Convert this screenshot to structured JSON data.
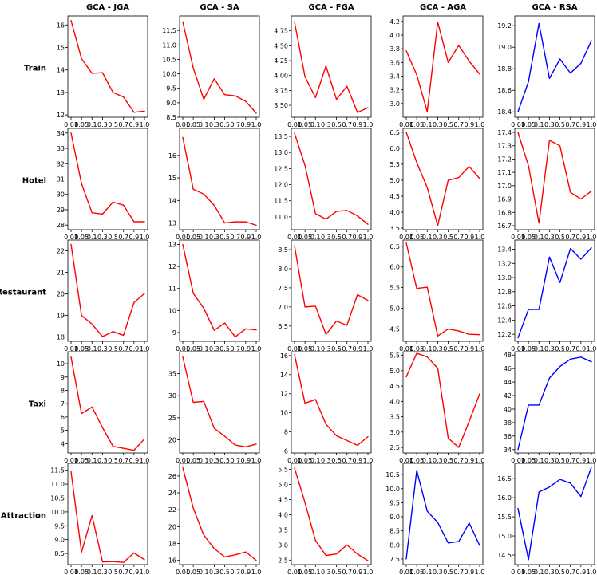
{
  "chart_data": {
    "type": "line",
    "x_tick_labels": [
      "0.01",
      "0.05",
      "0.1",
      "0.3",
      "0.5",
      "0.7",
      "0.9",
      "1.0"
    ],
    "columns": [
      "GCA - JGA",
      "GCA - SA",
      "GCA - FGA",
      "GCA - AGA",
      "GCA - RSA"
    ],
    "rows": [
      "Train",
      "Hotel",
      "Restaurant",
      "Taxi",
      "Attraction"
    ],
    "colors": {
      "red": "#ff0000",
      "blue": "#0000ff"
    },
    "panels": [
      [
        {
          "color": "red",
          "ylim": [
            11.9,
            16.4
          ],
          "yticks": [
            12,
            13,
            14,
            15,
            16
          ],
          "ytick_labels": [
            "12",
            "13",
            "14",
            "15",
            "16"
          ],
          "values": [
            16.2,
            14.5,
            13.85,
            13.88,
            13.0,
            12.8,
            12.12,
            12.17
          ]
        },
        {
          "color": "red",
          "ylim": [
            8.5,
            12.0
          ],
          "yticks": [
            8.5,
            9.0,
            9.5,
            10.0,
            10.5,
            11.0,
            11.5
          ],
          "ytick_labels": [
            "8.5",
            "9.0",
            "9.5",
            "10.0",
            "10.5",
            "11.0",
            "11.5"
          ],
          "values": [
            11.8,
            10.2,
            9.12,
            9.83,
            9.28,
            9.24,
            9.05,
            8.64
          ]
        },
        {
          "color": "red",
          "ylim": [
            3.3,
            5.0
          ],
          "yticks": [
            3.5,
            3.75,
            4.0,
            4.25,
            4.5,
            4.75
          ],
          "ytick_labels": [
            "3.50",
            "3.75",
            "4.00",
            "4.25",
            "4.50",
            "4.75"
          ],
          "values": [
            4.9,
            3.98,
            3.63,
            4.16,
            3.6,
            3.82,
            3.38,
            3.46
          ]
        },
        {
          "color": "red",
          "ylim": [
            2.8,
            4.28
          ],
          "yticks": [
            3.0,
            3.2,
            3.4,
            3.6,
            3.8,
            4.0,
            4.2
          ],
          "ytick_labels": [
            "3.0",
            "3.2",
            "3.4",
            "3.6",
            "3.8",
            "4.0",
            "4.2"
          ],
          "values": [
            3.77,
            3.42,
            2.88,
            4.19,
            3.6,
            3.85,
            3.62,
            3.43
          ]
        },
        {
          "color": "blue",
          "ylim": [
            18.35,
            19.29
          ],
          "yticks": [
            18.4,
            18.6,
            18.8,
            19.0,
            19.2
          ],
          "ytick_labels": [
            "18.4",
            "18.6",
            "18.8",
            "19.0",
            "19.2"
          ],
          "values": [
            18.4,
            18.68,
            19.22,
            18.71,
            18.89,
            18.76,
            18.85,
            19.06
          ]
        }
      ],
      [
        {
          "color": "red",
          "ylim": [
            27.7,
            34.3
          ],
          "yticks": [
            28,
            29,
            30,
            31,
            32,
            33,
            34
          ],
          "ytick_labels": [
            "28",
            "29",
            "30",
            "31",
            "32",
            "33",
            "34"
          ],
          "values": [
            34.0,
            30.7,
            28.8,
            28.72,
            29.5,
            29.3,
            28.22,
            28.22
          ]
        },
        {
          "color": "red",
          "ylim": [
            12.7,
            17.2
          ],
          "yticks": [
            13,
            14,
            15,
            16
          ],
          "ytick_labels": [
            "13",
            "14",
            "15",
            "16"
          ],
          "values": [
            16.8,
            14.5,
            14.28,
            13.78,
            13.0,
            13.05,
            13.05,
            12.9
          ]
        },
        {
          "color": "red",
          "ylim": [
            10.6,
            13.75
          ],
          "yticks": [
            11.0,
            11.5,
            12.0,
            12.5,
            13.0,
            13.5
          ],
          "ytick_labels": [
            "11.0",
            "11.5",
            "12.0",
            "12.5",
            "13.0",
            "13.5"
          ],
          "values": [
            13.6,
            12.6,
            11.1,
            10.93,
            11.17,
            11.2,
            11.03,
            10.77
          ]
        },
        {
          "color": "red",
          "ylim": [
            3.45,
            6.62
          ],
          "yticks": [
            3.5,
            4.0,
            4.5,
            5.0,
            5.5,
            6.0,
            6.5
          ],
          "ytick_labels": [
            "3.5",
            "4.0",
            "4.5",
            "5.0",
            "5.5",
            "6.0",
            "6.5"
          ],
          "values": [
            6.5,
            5.55,
            4.77,
            3.58,
            5.0,
            5.08,
            5.43,
            5.05
          ]
        },
        {
          "color": "red",
          "ylim": [
            16.67,
            17.43
          ],
          "yticks": [
            16.7,
            16.8,
            16.9,
            17.0,
            17.1,
            17.2,
            17.3,
            17.4
          ],
          "ytick_labels": [
            "16.7",
            "16.8",
            "16.9",
            "17.0",
            "17.1",
            "17.2",
            "17.3",
            "17.4"
          ],
          "values": [
            17.4,
            17.15,
            16.72,
            17.34,
            17.3,
            16.95,
            16.9,
            16.96
          ]
        }
      ],
      [
        {
          "color": "red",
          "ylim": [
            17.8,
            22.5
          ],
          "yticks": [
            18,
            19,
            20,
            21,
            22
          ],
          "ytick_labels": [
            "18",
            "19",
            "20",
            "21",
            "22"
          ],
          "values": [
            22.3,
            19.0,
            18.6,
            18.02,
            18.25,
            18.08,
            19.6,
            20.02
          ]
        },
        {
          "color": "red",
          "ylim": [
            8.6,
            13.2
          ],
          "yticks": [
            9,
            10,
            11,
            12,
            13
          ],
          "ytick_labels": [
            "9",
            "10",
            "11",
            "12",
            "13"
          ],
          "values": [
            13.0,
            10.78,
            10.1,
            9.1,
            9.43,
            8.8,
            9.17,
            9.12
          ]
        },
        {
          "color": "red",
          "ylim": [
            6.1,
            8.75
          ],
          "yticks": [
            6.5,
            7.0,
            7.5,
            8.0,
            8.5
          ],
          "ytick_labels": [
            "6.5",
            "7.0",
            "7.5",
            "8.0",
            "8.5"
          ],
          "values": [
            8.6,
            7.0,
            7.02,
            6.28,
            6.63,
            6.52,
            7.32,
            7.17
          ]
        },
        {
          "color": "red",
          "ylim": [
            4.2,
            6.65
          ],
          "yticks": [
            4.5,
            5.0,
            5.5,
            6.0,
            6.5
          ],
          "ytick_labels": [
            "4.5",
            "5.0",
            "5.5",
            "6.0",
            "6.5"
          ],
          "values": [
            6.58,
            5.48,
            5.51,
            4.33,
            4.5,
            4.45,
            4.37,
            4.36
          ]
        },
        {
          "color": "blue",
          "ylim": [
            12.1,
            13.53
          ],
          "yticks": [
            12.2,
            12.4,
            12.6,
            12.8,
            13.0,
            13.2,
            13.4
          ],
          "ytick_labels": [
            "12.2",
            "12.4",
            "12.6",
            "12.8",
            "13.0",
            "13.2",
            "13.4"
          ],
          "values": [
            12.15,
            12.55,
            12.55,
            13.29,
            12.93,
            13.41,
            13.26,
            13.42
          ]
        }
      ],
      [
        {
          "color": "red",
          "ylim": [
            3.3,
            10.9
          ],
          "yticks": [
            4,
            5,
            6,
            7,
            8,
            9,
            10
          ],
          "ytick_labels": [
            "4",
            "5",
            "6",
            "7",
            "8",
            "9",
            "10"
          ],
          "values": [
            10.5,
            6.25,
            6.75,
            5.2,
            3.8,
            3.65,
            3.5,
            4.35
          ]
        },
        {
          "color": "red",
          "ylim": [
            17.0,
            40.0
          ],
          "yticks": [
            20,
            25,
            30,
            35
          ],
          "ytick_labels": [
            "20",
            "25",
            "30",
            "35"
          ],
          "values": [
            38.8,
            28.5,
            28.7,
            22.6,
            20.8,
            18.8,
            18.4,
            19.0
          ]
        },
        {
          "color": "red",
          "ylim": [
            5.8,
            16.4
          ],
          "yticks": [
            6,
            8,
            10,
            12,
            14,
            16
          ],
          "ytick_labels": [
            "6",
            "8",
            "10",
            "12",
            "14",
            "16"
          ],
          "values": [
            16.1,
            11.0,
            11.4,
            8.8,
            7.6,
            7.1,
            6.6,
            7.5
          ]
        },
        {
          "color": "red",
          "ylim": [
            2.32,
            5.62
          ],
          "yticks": [
            2.5,
            3.0,
            3.5,
            4.0,
            4.5,
            5.0,
            5.5
          ],
          "ytick_labels": [
            "2.5",
            "3.0",
            "3.5",
            "4.0",
            "4.5",
            "5.0",
            "5.5"
          ],
          "values": [
            4.8,
            5.57,
            5.45,
            5.08,
            2.8,
            2.5,
            3.35,
            4.25
          ]
        },
        {
          "color": "blue",
          "ylim": [
            33.5,
            48.5
          ],
          "yticks": [
            34,
            36,
            38,
            40,
            42,
            44,
            46,
            48
          ],
          "ytick_labels": [
            "34",
            "36",
            "38",
            "40",
            "42",
            "44",
            "46",
            "48"
          ],
          "values": [
            34.0,
            40.6,
            40.6,
            44.6,
            46.3,
            47.4,
            47.7,
            47.0
          ]
        }
      ],
      [
        {
          "color": "red",
          "ylim": [
            8.1,
            11.75
          ],
          "yticks": [
            8.5,
            9.0,
            9.5,
            10.0,
            10.5,
            11.0,
            11.5
          ],
          "ytick_labels": [
            "8.5",
            "9.0",
            "9.5",
            "10.0",
            "10.5",
            "11.0",
            "11.5"
          ],
          "values": [
            11.45,
            8.55,
            9.87,
            8.2,
            8.21,
            8.18,
            8.52,
            8.28
          ]
        },
        {
          "color": "red",
          "ylim": [
            15.5,
            27.5
          ],
          "yticks": [
            16,
            18,
            20,
            22,
            24,
            26
          ],
          "ytick_labels": [
            "16",
            "18",
            "20",
            "22",
            "24",
            "26"
          ],
          "values": [
            27.0,
            22.2,
            19.0,
            17.4,
            16.4,
            16.65,
            17.0,
            16.0
          ]
        },
        {
          "color": "red",
          "ylim": [
            2.35,
            5.7
          ],
          "yticks": [
            2.5,
            3.0,
            3.5,
            4.0,
            4.5,
            5.0,
            5.5
          ],
          "ytick_labels": [
            "2.5",
            "3.0",
            "3.5",
            "4.0",
            "4.5",
            "5.0",
            "5.5"
          ],
          "values": [
            5.55,
            4.4,
            3.15,
            2.65,
            2.7,
            3.0,
            2.7,
            2.48
          ]
        },
        {
          "color": "blue",
          "ylim": [
            7.3,
            10.9
          ],
          "yticks": [
            7.5,
            8.0,
            8.5,
            9.0,
            9.5,
            10.0,
            10.5
          ],
          "ytick_labels": [
            "7.5",
            "8.0",
            "8.5",
            "9.0",
            "9.5",
            "10.0",
            "10.5"
          ],
          "values": [
            7.5,
            10.65,
            9.2,
            8.8,
            8.07,
            8.12,
            8.78,
            7.98
          ]
        },
        {
          "color": "blue",
          "ylim": [
            14.25,
            16.9
          ],
          "yticks": [
            14.5,
            15.0,
            15.5,
            16.0,
            16.5
          ],
          "ytick_labels": [
            "14.5",
            "15.0",
            "15.5",
            "16.0",
            "16.5"
          ],
          "values": [
            15.72,
            14.38,
            16.15,
            16.28,
            16.48,
            16.38,
            16.03,
            16.8
          ]
        }
      ]
    ]
  }
}
